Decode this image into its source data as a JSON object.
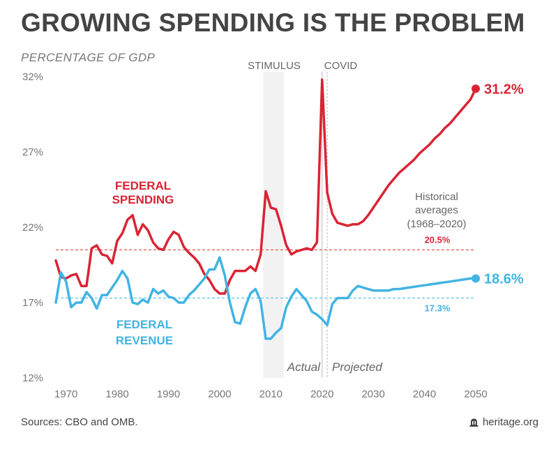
{
  "title": "GROWING SPENDING IS THE PROBLEM",
  "subtitle": "PERCENTAGE OF GDP",
  "footer": {
    "source": "Sources: CBO and OMB.",
    "brand": "heritage.org",
    "brand_icon": "bell-icon"
  },
  "chart_data": {
    "type": "line",
    "title": "GROWING SPENDING IS THE PROBLEM",
    "ylabel": "PERCENTAGE OF GDP",
    "xlim": [
      1968,
      2050
    ],
    "ylim": [
      12,
      32
    ],
    "x_ticks": [
      "1970",
      "1980",
      "1990",
      "2000",
      "2010",
      "2020",
      "2030",
      "2040",
      "2050"
    ],
    "y_ticks": [
      "12%",
      "17%",
      "22%",
      "27%",
      "32%"
    ],
    "grid": false,
    "series": [
      {
        "name": "FEDERAL SPENDING",
        "color": "#d92435",
        "end_label": "31.2%",
        "x": [
          1968,
          1969,
          1970,
          1971,
          1972,
          1973,
          1974,
          1975,
          1976,
          1977,
          1978,
          1979,
          1980,
          1981,
          1982,
          1983,
          1984,
          1985,
          1986,
          1987,
          1988,
          1989,
          1990,
          1991,
          1992,
          1993,
          1994,
          1995,
          1996,
          1997,
          1998,
          1999,
          2000,
          2001,
          2002,
          2003,
          2004,
          2005,
          2006,
          2007,
          2008,
          2009,
          2010,
          2011,
          2012,
          2013,
          2014,
          2015,
          2016,
          2017,
          2018,
          2019,
          2020,
          2021,
          2022,
          2023,
          2024,
          2025,
          2026,
          2027,
          2028,
          2029,
          2030,
          2031,
          2032,
          2033,
          2034,
          2035,
          2036,
          2037,
          2038,
          2039,
          2040,
          2041,
          2042,
          2043,
          2044,
          2045,
          2046,
          2047,
          2048,
          2049,
          2050
        ],
        "y": [
          19.8,
          18.7,
          18.6,
          18.8,
          18.9,
          18.1,
          18.1,
          20.6,
          20.8,
          20.2,
          20.1,
          19.6,
          21.1,
          21.6,
          22.5,
          22.8,
          21.5,
          22.2,
          21.8,
          21.0,
          20.6,
          20.5,
          21.2,
          21.7,
          21.5,
          20.7,
          20.3,
          20.0,
          19.6,
          18.9,
          18.5,
          17.9,
          17.6,
          17.6,
          18.5,
          19.1,
          19.1,
          19.1,
          19.4,
          19.1,
          20.2,
          24.4,
          23.3,
          23.2,
          22.1,
          20.8,
          20.2,
          20.4,
          20.5,
          20.6,
          20.5,
          21.0,
          31.8,
          24.3,
          22.9,
          22.3,
          22.2,
          22.1,
          22.2,
          22.2,
          22.4,
          22.8,
          23.3,
          23.8,
          24.3,
          24.8,
          25.2,
          25.6,
          25.9,
          26.2,
          26.5,
          26.9,
          27.2,
          27.5,
          27.9,
          28.2,
          28.6,
          28.9,
          29.3,
          29.7,
          30.1,
          30.5,
          31.2
        ]
      },
      {
        "name": "FEDERAL REVENUE",
        "color": "#42b4e3",
        "end_label": "18.6%",
        "x": [
          1968,
          1969,
          1970,
          1971,
          1972,
          1973,
          1974,
          1975,
          1976,
          1977,
          1978,
          1979,
          1980,
          1981,
          1982,
          1983,
          1984,
          1985,
          1986,
          1987,
          1988,
          1989,
          1990,
          1991,
          1992,
          1993,
          1994,
          1995,
          1996,
          1997,
          1998,
          1999,
          2000,
          2001,
          2002,
          2003,
          2004,
          2005,
          2006,
          2007,
          2008,
          2009,
          2010,
          2011,
          2012,
          2013,
          2014,
          2015,
          2016,
          2017,
          2018,
          2019,
          2020,
          2021,
          2022,
          2023,
          2024,
          2025,
          2026,
          2027,
          2028,
          2029,
          2030,
          2031,
          2032,
          2033,
          2034,
          2035,
          2036,
          2037,
          2038,
          2039,
          2040,
          2041,
          2042,
          2043,
          2044,
          2045,
          2046,
          2047,
          2048,
          2049,
          2050
        ],
        "y": [
          17.0,
          19.0,
          18.4,
          16.7,
          17.0,
          17.0,
          17.7,
          17.3,
          16.6,
          17.5,
          17.5,
          18.0,
          18.5,
          19.1,
          18.6,
          17.0,
          16.9,
          17.2,
          17.0,
          17.9,
          17.6,
          17.8,
          17.4,
          17.3,
          17.0,
          17.0,
          17.5,
          17.8,
          18.2,
          18.6,
          19.2,
          19.2,
          20.0,
          18.8,
          17.0,
          15.7,
          15.6,
          16.7,
          17.6,
          17.9,
          17.1,
          14.6,
          14.6,
          15.0,
          15.3,
          16.7,
          17.4,
          17.9,
          17.5,
          17.1,
          16.4,
          16.2,
          15.9,
          15.5,
          16.9,
          17.3,
          17.3,
          17.3,
          17.8,
          18.1,
          18.0,
          17.9,
          17.8,
          17.8,
          17.8,
          17.8,
          17.9,
          17.9,
          17.95,
          18.0,
          18.05,
          18.1,
          18.15,
          18.2,
          18.25,
          18.3,
          18.35,
          18.4,
          18.45,
          18.5,
          18.55,
          18.6,
          18.6
        ]
      }
    ],
    "reference_lines": [
      {
        "value": 20.5,
        "label": "20.5%",
        "color": "#e8594a"
      },
      {
        "value": 17.3,
        "label": "17.3%",
        "color": "#5ec1e8"
      }
    ],
    "shaded_regions": [
      {
        "label": "STIMULUS",
        "x_start": 2008.5,
        "x_end": 2012.5
      }
    ],
    "event_lines": [
      {
        "label": "COVID",
        "x": 2020
      },
      {
        "x": 2021
      }
    ],
    "annotations": {
      "spending_label": [
        "FEDERAL",
        "SPENDING"
      ],
      "revenue_label": [
        "FEDERAL",
        "REVENUE"
      ],
      "historical": [
        "Historical",
        "averages",
        "(1968–2020)"
      ],
      "actual": "Actual",
      "projected": "Projected"
    }
  }
}
